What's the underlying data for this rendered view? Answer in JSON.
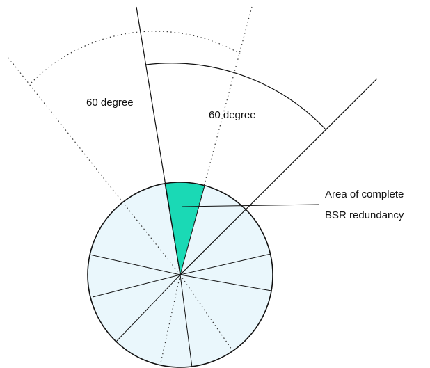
{
  "labels": {
    "left_angle": "60 degree",
    "right_angle": "60 degree",
    "callout_line1": "Area of complete",
    "callout_line2": "BSR redundancy"
  },
  "colors": {
    "disk_fill": "#eaf7fc",
    "highlight_fill": "#1ad9b5",
    "stroke": "#111111"
  }
}
